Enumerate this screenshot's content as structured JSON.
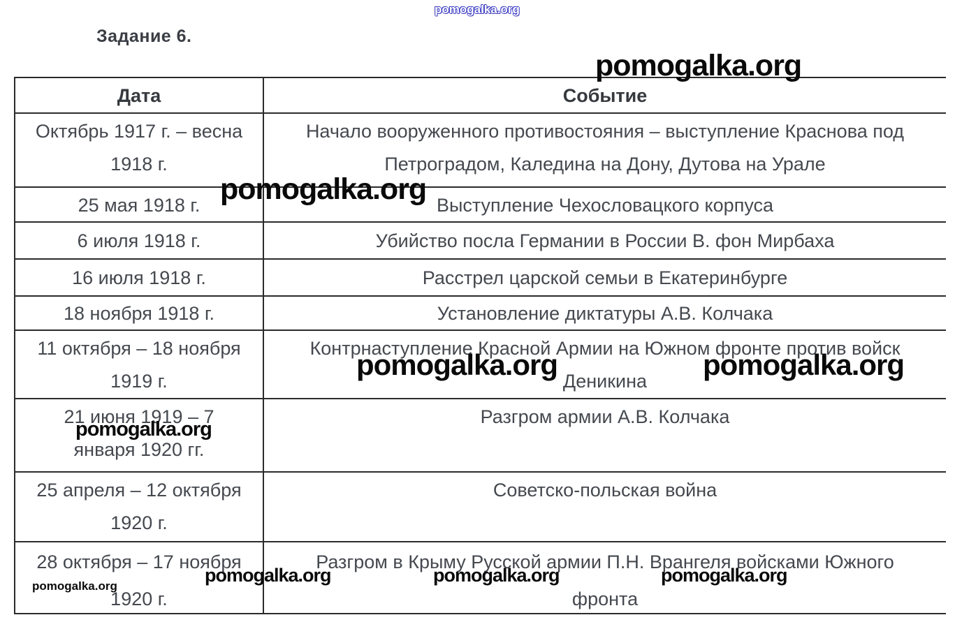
{
  "title": "Задание 6.",
  "watermark": {
    "text": "pomogalka.org"
  },
  "table": {
    "headers": {
      "date": "Дата",
      "event": "Событие"
    },
    "rows": [
      {
        "date": "Октябрь 1917 г. – весна\n1918 г.",
        "event": "Начало вооруженного противостояния – выступление Краснова под\nПетроградом, Каледина на Дону, Дутова на Урале"
      },
      {
        "date": "25 мая 1918 г.",
        "event": "Выступление Чехословацкого корпуса"
      },
      {
        "date": "6 июля 1918 г.",
        "event": "Убийство посла Германии в России В. фон Мирбаха"
      },
      {
        "date": "16 июля 1918 г.",
        "event": "Расстрел царской семьи в Екатеринбурге"
      },
      {
        "date": "18 ноября 1918 г.",
        "event": "Установление диктатуры А.В. Колчака"
      },
      {
        "date": "11 октября – 18 ноября\n1919 г.",
        "event": "Контрнаступление Красной Армии на Южном фронте против войск\nДеникина"
      },
      {
        "date": "21 июня 1919 – 7\nянваря 1920 гг.",
        "event": "Разгром армии А.В. Колчака"
      },
      {
        "date": "25 апреля – 12 октября\n1920 г.",
        "event": "Советско-польская война"
      },
      {
        "date": "28 октября – 17 ноября\n1920 г.",
        "event": "Разгром в Крыму Русской армии П.Н. Врангеля войсками Южного\nфронта"
      }
    ]
  }
}
